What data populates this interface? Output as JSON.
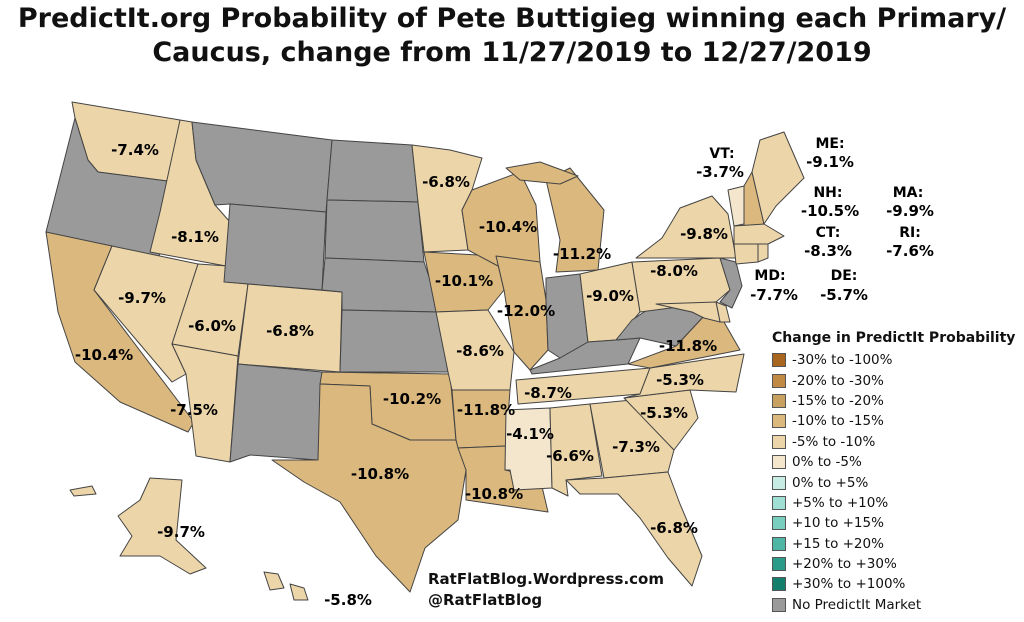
{
  "title": "PredictIt.org Probability of Pete Buttigieg winning each Primary/ Caucus, change from 11/27/2019 to 12/27/2019",
  "colors": {
    "tier_neg30_100": "#a8671f",
    "tier_neg20_30": "#c08a45",
    "tier_neg15_20": "#c8a060",
    "tier_neg10_15": "#dab87e",
    "tier_neg5_10": "#ecd5a8",
    "tier_0_neg5": "#f4e6cc",
    "tier_0_pos5": "#c6ece4",
    "tier_pos5_10": "#a0dfd3",
    "tier_pos10_15": "#78cebf",
    "tier_pos15_20": "#4fb5a4",
    "tier_pos20_30": "#2a9b88",
    "tier_pos30_100": "#137e6c",
    "no_market": "#9a9a9a",
    "border": "#444444"
  },
  "states": [
    {
      "state": "WA",
      "change": "-7.4%"
    },
    {
      "state": "OR",
      "change": "No PredictIt Market"
    },
    {
      "state": "CA",
      "change": "-10.4%"
    },
    {
      "state": "ID",
      "change": "-8.1%"
    },
    {
      "state": "NV",
      "change": "-9.7%"
    },
    {
      "state": "UT",
      "change": "-6.0%"
    },
    {
      "state": "AZ",
      "change": "-7.5%"
    },
    {
      "state": "MT",
      "change": "No PredictIt Market"
    },
    {
      "state": "WY",
      "change": "No PredictIt Market"
    },
    {
      "state": "CO",
      "change": "-6.8%"
    },
    {
      "state": "NM",
      "change": "No PredictIt Market"
    },
    {
      "state": "ND",
      "change": "No PredictIt Market"
    },
    {
      "state": "SD",
      "change": "No PredictIt Market"
    },
    {
      "state": "NE",
      "change": "No PredictIt Market"
    },
    {
      "state": "KS",
      "change": "No PredictIt Market"
    },
    {
      "state": "OK",
      "change": "-10.2%"
    },
    {
      "state": "TX",
      "change": "-10.8%"
    },
    {
      "state": "MN",
      "change": "-6.8%"
    },
    {
      "state": "IA",
      "change": "-10.1%"
    },
    {
      "state": "MO",
      "change": "-8.6%"
    },
    {
      "state": "AR",
      "change": "-11.8%"
    },
    {
      "state": "LA",
      "change": "-10.8%"
    },
    {
      "state": "WI",
      "change": "-10.4%"
    },
    {
      "state": "IL",
      "change": "-12.0%"
    },
    {
      "state": "MI",
      "change": "-11.2%"
    },
    {
      "state": "IN",
      "change": "No PredictIt Market"
    },
    {
      "state": "OH",
      "change": "-9.0%"
    },
    {
      "state": "KY",
      "change": "No PredictIt Market"
    },
    {
      "state": "TN",
      "change": "-8.7%"
    },
    {
      "state": "MS",
      "change": "-4.1%"
    },
    {
      "state": "AL",
      "change": "-6.6%"
    },
    {
      "state": "GA",
      "change": "-7.3%"
    },
    {
      "state": "FL",
      "change": "-6.8%"
    },
    {
      "state": "SC",
      "change": "-5.3%"
    },
    {
      "state": "NC",
      "change": "-5.3%"
    },
    {
      "state": "VA",
      "change": "-11.8%"
    },
    {
      "state": "WV",
      "change": "No PredictIt Market"
    },
    {
      "state": "PA",
      "change": "-8.0%"
    },
    {
      "state": "NY",
      "change": "-9.8%"
    },
    {
      "state": "NJ",
      "change": "No PredictIt Market"
    },
    {
      "state": "AK",
      "change": "-9.7%"
    },
    {
      "state": "HI",
      "change": "-5.8%"
    }
  ],
  "small_states": {
    "vt": {
      "abbr": "VT:",
      "value": "-3.7%"
    },
    "me": {
      "abbr": "ME:",
      "value": "-9.1%"
    },
    "nh": {
      "abbr": "NH:",
      "value": "-10.5%"
    },
    "ma": {
      "abbr": "MA:",
      "value": "-9.9%"
    },
    "ct": {
      "abbr": "CT:",
      "value": "-8.3%"
    },
    "ri": {
      "abbr": "RI:",
      "value": "-7.6%"
    },
    "md": {
      "abbr": "MD:",
      "value": "-7.7%"
    },
    "de": {
      "abbr": "DE:",
      "value": "-5.7%"
    }
  },
  "legend": {
    "title": "Change in PredictIt Probability",
    "items": [
      {
        "label": "-30% to -100%",
        "color": "#a8671f"
      },
      {
        "label": "-20% to -30%",
        "color": "#c08a45"
      },
      {
        "label": "-15% to -20%",
        "color": "#c8a060"
      },
      {
        "label": "-10% to -15%",
        "color": "#dab87e"
      },
      {
        "label": "-5% to -10%",
        "color": "#ecd5a8"
      },
      {
        "label": "0% to -5%",
        "color": "#f4e6cc"
      },
      {
        "label": "0% to +5%",
        "color": "#c6ece4"
      },
      {
        "label": "+5% to +10%",
        "color": "#a0dfd3"
      },
      {
        "label": "+10 to +15%",
        "color": "#78cebf"
      },
      {
        "label": "+15 to +20%",
        "color": "#4fb5a4"
      },
      {
        "label": "+20% to +30%",
        "color": "#2a9b88"
      },
      {
        "label": "+30% to +100%",
        "color": "#137e6c"
      },
      {
        "label": "No PredictIt Market",
        "color": "#9a9a9a"
      }
    ]
  },
  "credit": {
    "line1": "RatFlatBlog.Wordpress.com",
    "line2": "@RatFlatBlog"
  }
}
